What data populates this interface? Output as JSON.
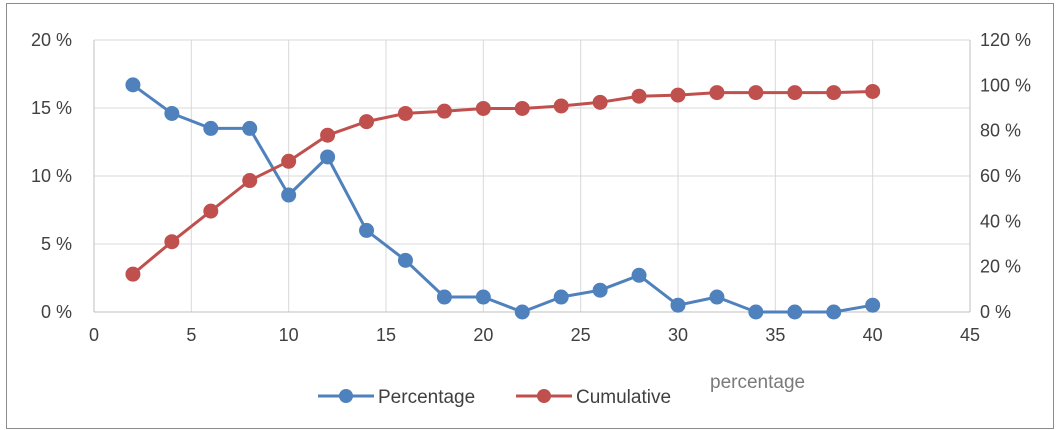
{
  "chart_data": {
    "type": "line",
    "title": "",
    "xlabel": "",
    "ylabel": "",
    "xlim": [
      0,
      45
    ],
    "xticks": [
      0,
      5,
      10,
      15,
      20,
      25,
      30,
      35,
      40,
      45
    ],
    "y_left": {
      "lim": [
        0,
        20
      ],
      "ticks": [
        0,
        5,
        10,
        15,
        20
      ],
      "tick_labels": [
        "0 %",
        "5 %",
        "10 %",
        "15 %",
        "20 %"
      ]
    },
    "y_right": {
      "lim": [
        0,
        120
      ],
      "ticks": [
        0,
        20,
        40,
        60,
        80,
        100,
        120
      ],
      "tick_labels": [
        "0 %",
        "20 %",
        "40 %",
        "60 %",
        "80 %",
        "100 %",
        "120 %"
      ]
    },
    "grid": true,
    "legend_position": "bottom",
    "x": [
      2,
      4,
      6,
      8,
      10,
      12,
      14,
      16,
      18,
      20,
      22,
      24,
      26,
      28,
      30,
      32,
      34,
      36,
      38,
      40
    ],
    "series": [
      {
        "name": "Percentage",
        "axis": "left",
        "color": "#4f81bd",
        "values": [
          16.7,
          14.6,
          13.5,
          13.5,
          8.6,
          11.4,
          6.0,
          3.8,
          1.1,
          1.1,
          0.0,
          1.1,
          1.6,
          2.7,
          0.5,
          1.1,
          0.0,
          0.0,
          0.0,
          0.5
        ]
      },
      {
        "name": "Cumulative",
        "axis": "right",
        "color": "#c0504d",
        "values": [
          16.7,
          31.0,
          44.5,
          58.0,
          66.5,
          78.0,
          84.0,
          87.6,
          88.6,
          89.8,
          89.8,
          90.9,
          92.5,
          95.2,
          95.7,
          96.8,
          96.8,
          96.8,
          96.8,
          97.3
        ]
      }
    ],
    "legend_extra_text": "percentage"
  }
}
